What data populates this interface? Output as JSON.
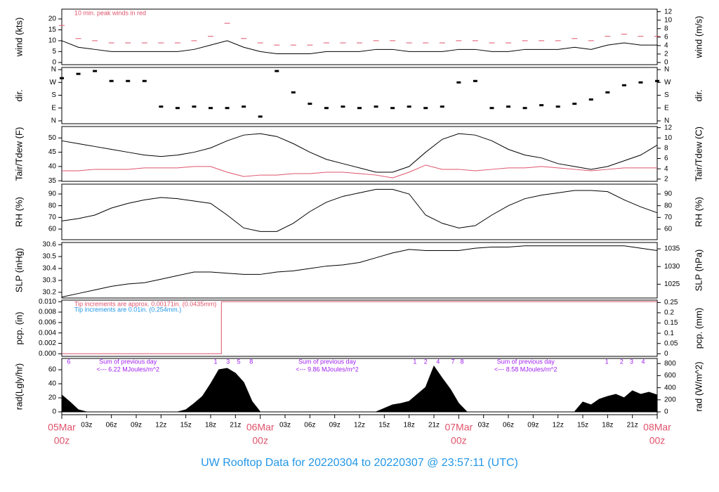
{
  "caption": "UW Rooftop Data for 20220304  to  20220307 @ 23:57:11  (UTC)",
  "chart_data": [
    {
      "type": "line",
      "ylabel": "wind (kts)",
      "y2label": "wind (m/s)",
      "xlim": [
        0,
        72
      ],
      "ylim": [
        -1,
        24.5
      ],
      "yticks": [
        0,
        5,
        10,
        15,
        20
      ],
      "y2lim": [
        -0.51,
        12.6
      ],
      "y2ticks": [
        0,
        2,
        4,
        6,
        8,
        10,
        12
      ],
      "notes": [
        {
          "text": "10 min. peak winds in red",
          "color": "#DF536B"
        }
      ],
      "x": [
        0,
        2,
        4,
        6,
        8,
        10,
        12,
        14,
        16,
        18,
        20,
        22,
        24,
        26,
        28,
        30,
        32,
        34,
        36,
        38,
        40,
        42,
        44,
        46,
        48,
        50,
        52,
        54,
        56,
        58,
        60,
        62,
        64,
        66,
        68,
        70,
        72
      ],
      "series": [
        {
          "color": "#000000",
          "values": [
            10,
            7,
            6,
            5,
            5,
            5,
            5,
            5,
            6,
            8,
            10,
            7,
            5,
            4,
            4,
            4,
            5,
            5,
            5,
            6,
            6,
            5,
            5,
            5,
            6,
            6,
            5,
            5,
            6,
            6,
            6,
            7,
            6,
            8,
            9,
            8,
            8
          ]
        },
        {
          "type": "dash",
          "color": "#DF536B",
          "values": [
            17,
            11,
            10,
            9,
            9,
            9,
            9,
            9,
            10,
            12,
            18,
            11,
            9,
            8,
            8,
            8,
            9,
            9,
            9,
            10,
            10,
            9,
            9,
            9,
            10,
            10,
            9,
            9,
            10,
            10,
            10,
            11,
            10,
            12,
            13,
            12,
            12
          ]
        }
      ]
    },
    {
      "type": "scatter",
      "ylabel": "dir.",
      "y2label": "dir.",
      "xlim": [
        0,
        72
      ],
      "ylim": [
        -20,
        375
      ],
      "yticks": [
        {
          "value": 0,
          "label": "N"
        },
        {
          "value": 90,
          "label": "E"
        },
        {
          "value": 180,
          "label": "S"
        },
        {
          "value": 270,
          "label": "W"
        },
        {
          "value": 360,
          "label": "N"
        }
      ],
      "y2lim": [
        -20,
        375
      ],
      "y2ticks": [
        {
          "value": 0,
          "label": "N"
        },
        {
          "value": 90,
          "label": "E"
        },
        {
          "value": 180,
          "label": "S"
        },
        {
          "value": 270,
          "label": "W"
        },
        {
          "value": 360,
          "label": "N"
        }
      ],
      "x": [
        0,
        2,
        4,
        6,
        8,
        10,
        12,
        14,
        16,
        18,
        20,
        22,
        24,
        26,
        28,
        30,
        32,
        34,
        36,
        38,
        40,
        42,
        44,
        46,
        48,
        50,
        52,
        54,
        56,
        58,
        60,
        62,
        64,
        66,
        68,
        70,
        72
      ],
      "series": [
        {
          "color": "#000000",
          "values": [
            300,
            330,
            350,
            280,
            280,
            280,
            100,
            90,
            100,
            90,
            90,
            100,
            30,
            350,
            200,
            120,
            90,
            100,
            90,
            100,
            90,
            100,
            90,
            100,
            270,
            280,
            90,
            100,
            90,
            110,
            100,
            120,
            150,
            200,
            250,
            270,
            280
          ]
        }
      ]
    },
    {
      "type": "line",
      "ylabel": "Tair/Tdew (F)",
      "y2label": "Tair/Tdew (C)",
      "xlim": [
        0,
        72
      ],
      "ylim": [
        34.8,
        54
      ],
      "yticks": [
        35,
        40,
        45,
        50
      ],
      "y2lim": [
        1.56,
        12.22
      ],
      "y2ticks": [
        2,
        4,
        6,
        8,
        10,
        12
      ],
      "x": [
        0,
        2,
        4,
        6,
        8,
        10,
        12,
        14,
        16,
        18,
        20,
        22,
        24,
        26,
        28,
        30,
        32,
        34,
        36,
        38,
        40,
        42,
        44,
        46,
        48,
        50,
        52,
        54,
        56,
        58,
        60,
        62,
        64,
        66,
        68,
        70,
        72
      ],
      "series": [
        {
          "color": "#000000",
          "values": [
            49,
            48,
            47,
            46,
            45,
            44,
            43.5,
            44,
            45,
            46.5,
            49,
            51,
            51.5,
            50.5,
            48,
            45,
            42.5,
            41,
            39.5,
            38,
            38,
            40,
            45,
            49.5,
            51.5,
            51,
            49,
            46,
            44,
            43,
            41,
            40,
            39,
            40,
            42,
            44,
            47.5
          ]
        },
        {
          "color": "#DF536B",
          "values": [
            38.5,
            38.5,
            39,
            39,
            39,
            39.5,
            39.5,
            39.5,
            40,
            40,
            38,
            36.5,
            37,
            37,
            37.5,
            37.5,
            38,
            38,
            37.5,
            37,
            36,
            38,
            40.5,
            39,
            39,
            38.5,
            39,
            39.5,
            39.5,
            40,
            39.5,
            39,
            38.5,
            39,
            39.5,
            39.5,
            39.5
          ]
        }
      ]
    },
    {
      "type": "line",
      "ylabel": "RH (%)",
      "y2label": "RH (%)",
      "xlim": [
        0,
        72
      ],
      "ylim": [
        51,
        98.4
      ],
      "yticks": [
        60,
        70,
        80,
        90
      ],
      "y2lim": [
        51,
        98.4
      ],
      "y2ticks": [
        60,
        70,
        80,
        90
      ],
      "x": [
        0,
        2,
        4,
        6,
        8,
        10,
        12,
        14,
        16,
        18,
        20,
        22,
        24,
        26,
        28,
        30,
        32,
        34,
        36,
        38,
        40,
        42,
        44,
        46,
        48,
        50,
        52,
        54,
        56,
        58,
        60,
        62,
        64,
        66,
        68,
        70,
        72
      ],
      "series": [
        {
          "color": "#000000",
          "values": [
            67,
            69,
            72,
            78,
            82,
            85,
            87,
            86,
            84,
            82,
            72,
            61,
            58,
            58,
            65,
            75,
            83,
            88,
            91,
            94,
            94,
            90,
            72,
            65,
            61,
            63,
            72,
            80,
            86,
            89,
            91,
            93,
            93,
            92,
            85,
            79,
            74
          ]
        }
      ]
    },
    {
      "type": "line",
      "ylabel": "SLP (inHg)",
      "y2label": "SLP (hPa)",
      "xlim": [
        0,
        72
      ],
      "ylim": [
        30.152,
        30.618
      ],
      "yticks": [
        30.2,
        30.3,
        30.4,
        30.5,
        30.6
      ],
      "y2lim": [
        1021.1,
        1036.8
      ],
      "y2ticks": [
        1025,
        1030,
        1035
      ],
      "x": [
        0,
        2,
        4,
        6,
        8,
        10,
        12,
        14,
        16,
        18,
        20,
        22,
        24,
        26,
        28,
        30,
        32,
        34,
        36,
        38,
        40,
        42,
        44,
        46,
        48,
        50,
        52,
        54,
        56,
        58,
        60,
        62,
        64,
        66,
        68,
        70,
        72
      ],
      "series": [
        {
          "color": "#000000",
          "values": [
            30.16,
            30.19,
            30.22,
            30.25,
            30.27,
            30.28,
            30.31,
            30.34,
            30.37,
            30.37,
            30.36,
            30.35,
            30.35,
            30.37,
            30.38,
            30.4,
            30.42,
            30.43,
            30.45,
            30.49,
            30.53,
            30.56,
            30.55,
            30.55,
            30.55,
            30.57,
            30.58,
            30.58,
            30.59,
            30.59,
            30.59,
            30.59,
            30.59,
            30.59,
            30.59,
            30.57,
            30.55
          ]
        }
      ]
    },
    {
      "type": "line",
      "ylabel": "pcp. (in)",
      "y2label": "pcp. (mm)",
      "xlim": [
        0,
        72
      ],
      "ylim": [
        -0.0005,
        0.0103
      ],
      "yticks": [
        {
          "value": 0,
          "label": "0.000"
        },
        {
          "value": 0.002,
          "label": "0.002"
        },
        {
          "value": 0.004,
          "label": "0.004"
        },
        {
          "value": 0.006,
          "label": "0.006"
        },
        {
          "value": 0.008,
          "label": "0.008"
        },
        {
          "value": 0.01,
          "label": "0.010"
        }
      ],
      "y2lim": [
        -0.0127,
        0.2616
      ],
      "y2ticks": [
        0,
        0.05,
        0.1,
        0.15,
        0.2,
        0.25
      ],
      "notes": [
        {
          "text": "Tip increments are approx. 0.00171in. (0.0435mm)",
          "color": "#DF536B"
        },
        {
          "text": "Tip increments are 0.01in. (0.254mm.)",
          "color": "#2297E6"
        }
      ],
      "x": [
        0,
        19.3,
        19.3,
        72
      ],
      "series": [
        {
          "color": "#DF536B",
          "values": [
            0,
            0,
            0.01,
            0.01
          ]
        }
      ]
    },
    {
      "type": "area",
      "ylabel": "rad(Lgly/hr)",
      "y2label": "rad (W/m^2)",
      "xlim": [
        0,
        72
      ],
      "ylim": [
        -4,
        76
      ],
      "yticks": [
        0,
        20,
        40,
        60
      ],
      "y2lim": [
        -46.5,
        884
      ],
      "y2ticks": [
        0,
        200,
        400,
        600,
        800
      ],
      "xticks": [
        {
          "value": 3,
          "label": "03z"
        },
        {
          "value": 6,
          "label": "06z"
        },
        {
          "value": 9,
          "label": "09z"
        },
        {
          "value": 12,
          "label": "12z"
        },
        {
          "value": 15,
          "label": "15z"
        },
        {
          "value": 18,
          "label": "18z"
        },
        {
          "value": 21,
          "label": "21z"
        },
        {
          "value": 27,
          "label": "03z"
        },
        {
          "value": 30,
          "label": "06z"
        },
        {
          "value": 33,
          "label": "09z"
        },
        {
          "value": 36,
          "label": "12z"
        },
        {
          "value": 39,
          "label": "15z"
        },
        {
          "value": 42,
          "label": "18z"
        },
        {
          "value": 45,
          "label": "21z"
        },
        {
          "value": 51,
          "label": "03z"
        },
        {
          "value": 54,
          "label": "06z"
        },
        {
          "value": 57,
          "label": "09z"
        },
        {
          "value": 60,
          "label": "12z"
        },
        {
          "value": 63,
          "label": "15z"
        },
        {
          "value": 66,
          "label": "18z"
        },
        {
          "value": 69,
          "label": "21z"
        }
      ],
      "day_ticks": [
        {
          "value": 0,
          "label": "05Mar",
          "hour": "00z"
        },
        {
          "value": 24,
          "label": "06Mar",
          "hour": "00z"
        },
        {
          "value": 48,
          "label": "07Mar",
          "hour": "00z"
        },
        {
          "value": 72,
          "label": "08Mar",
          "hour": "00z"
        }
      ],
      "day_sums": [
        {
          "x": 8,
          "label": "Sum of previous day",
          "text": "<--- 6.22 MJoules/m^2"
        },
        {
          "x": 32.1,
          "label": "Sum of previous day",
          "text": "<--- 9.86 MJoules/m^2"
        },
        {
          "x": 56.1,
          "label": "Sum of previous day",
          "text": "<--- 8.58 MJoules/m^2"
        }
      ],
      "hour_marks": [
        {
          "x": 0.85,
          "label": "6"
        },
        {
          "x": 18.6,
          "label": "1"
        },
        {
          "x": 20.1,
          "label": "3"
        },
        {
          "x": 21.4,
          "label": "5"
        },
        {
          "x": 22.9,
          "label": "8"
        },
        {
          "x": 42.7,
          "label": "1"
        },
        {
          "x": 44,
          "label": "2"
        },
        {
          "x": 45.5,
          "label": "4"
        },
        {
          "x": 47.3,
          "label": "7"
        },
        {
          "x": 48.4,
          "label": "8"
        },
        {
          "x": 65.9,
          "label": "1"
        },
        {
          "x": 67.7,
          "label": "2"
        },
        {
          "x": 68.9,
          "label": "3"
        },
        {
          "x": 70.3,
          "label": "4"
        }
      ],
      "x": [
        0,
        1,
        2,
        3,
        4,
        5,
        6,
        7,
        8,
        9,
        10,
        11,
        12,
        13,
        14,
        15,
        16,
        17,
        18,
        19,
        20,
        21,
        22,
        23,
        24,
        25,
        26,
        27,
        28,
        29,
        30,
        31,
        32,
        33,
        34,
        35,
        36,
        37,
        38,
        39,
        40,
        41,
        42,
        43,
        44,
        45,
        46,
        47,
        48,
        49,
        50,
        51,
        52,
        53,
        54,
        55,
        56,
        57,
        58,
        59,
        60,
        61,
        62,
        63,
        64,
        65,
        66,
        67,
        68,
        69,
        70,
        71,
        72
      ],
      "series": [
        {
          "color": "#000000",
          "values": [
            24,
            14,
            3,
            0,
            0,
            0,
            0,
            0,
            0,
            0,
            0,
            0,
            0,
            0,
            0,
            3,
            12,
            22,
            40,
            60,
            62,
            55,
            42,
            15,
            0,
            0,
            0,
            0,
            0,
            0,
            0,
            0,
            0,
            0,
            0,
            0,
            0,
            0,
            0,
            5,
            10,
            12,
            15,
            25,
            35,
            65,
            48,
            32,
            12,
            0,
            0,
            0,
            0,
            0,
            0,
            0,
            0,
            0,
            0,
            0,
            0,
            0,
            0,
            14,
            10,
            18,
            22,
            25,
            20,
            30,
            25,
            28,
            24
          ]
        }
      ]
    }
  ]
}
